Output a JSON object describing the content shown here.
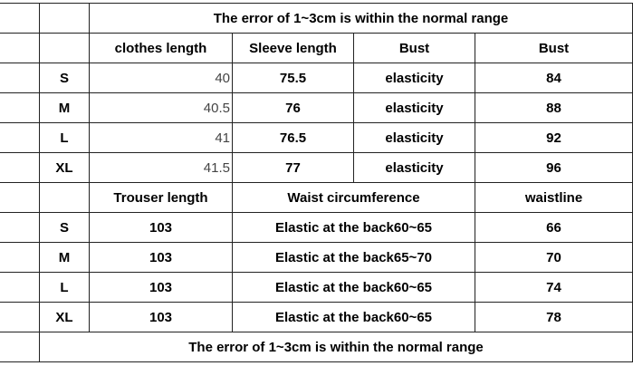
{
  "table": {
    "title": "The error of 1~3cm is within the normal range",
    "top_header": [
      "clothes length",
      "Sleeve length",
      "Bust",
      "Bust"
    ],
    "top_rows": [
      [
        "S",
        "40",
        "75.5",
        "elasticity",
        "84"
      ],
      [
        "M",
        "40.5",
        "76",
        "elasticity",
        "88"
      ],
      [
        "L",
        "41",
        "76.5",
        "elasticity",
        "92"
      ],
      [
        "XL",
        "41.5",
        "77",
        "elasticity",
        "96"
      ]
    ],
    "bottom_header": [
      "Trouser length",
      "Waist circumference",
      "waistline"
    ],
    "bottom_rows": [
      [
        "S",
        "103",
        "Elastic at the back60~65",
        "66"
      ],
      [
        "M",
        "103",
        "Elastic at the back65~70",
        "70"
      ],
      [
        "L",
        "103",
        "Elastic at the back60~65",
        "74"
      ],
      [
        "XL",
        "103",
        "Elastic at the back60~65",
        "78"
      ]
    ],
    "footer": "The error of 1~3cm is within the normal range"
  }
}
